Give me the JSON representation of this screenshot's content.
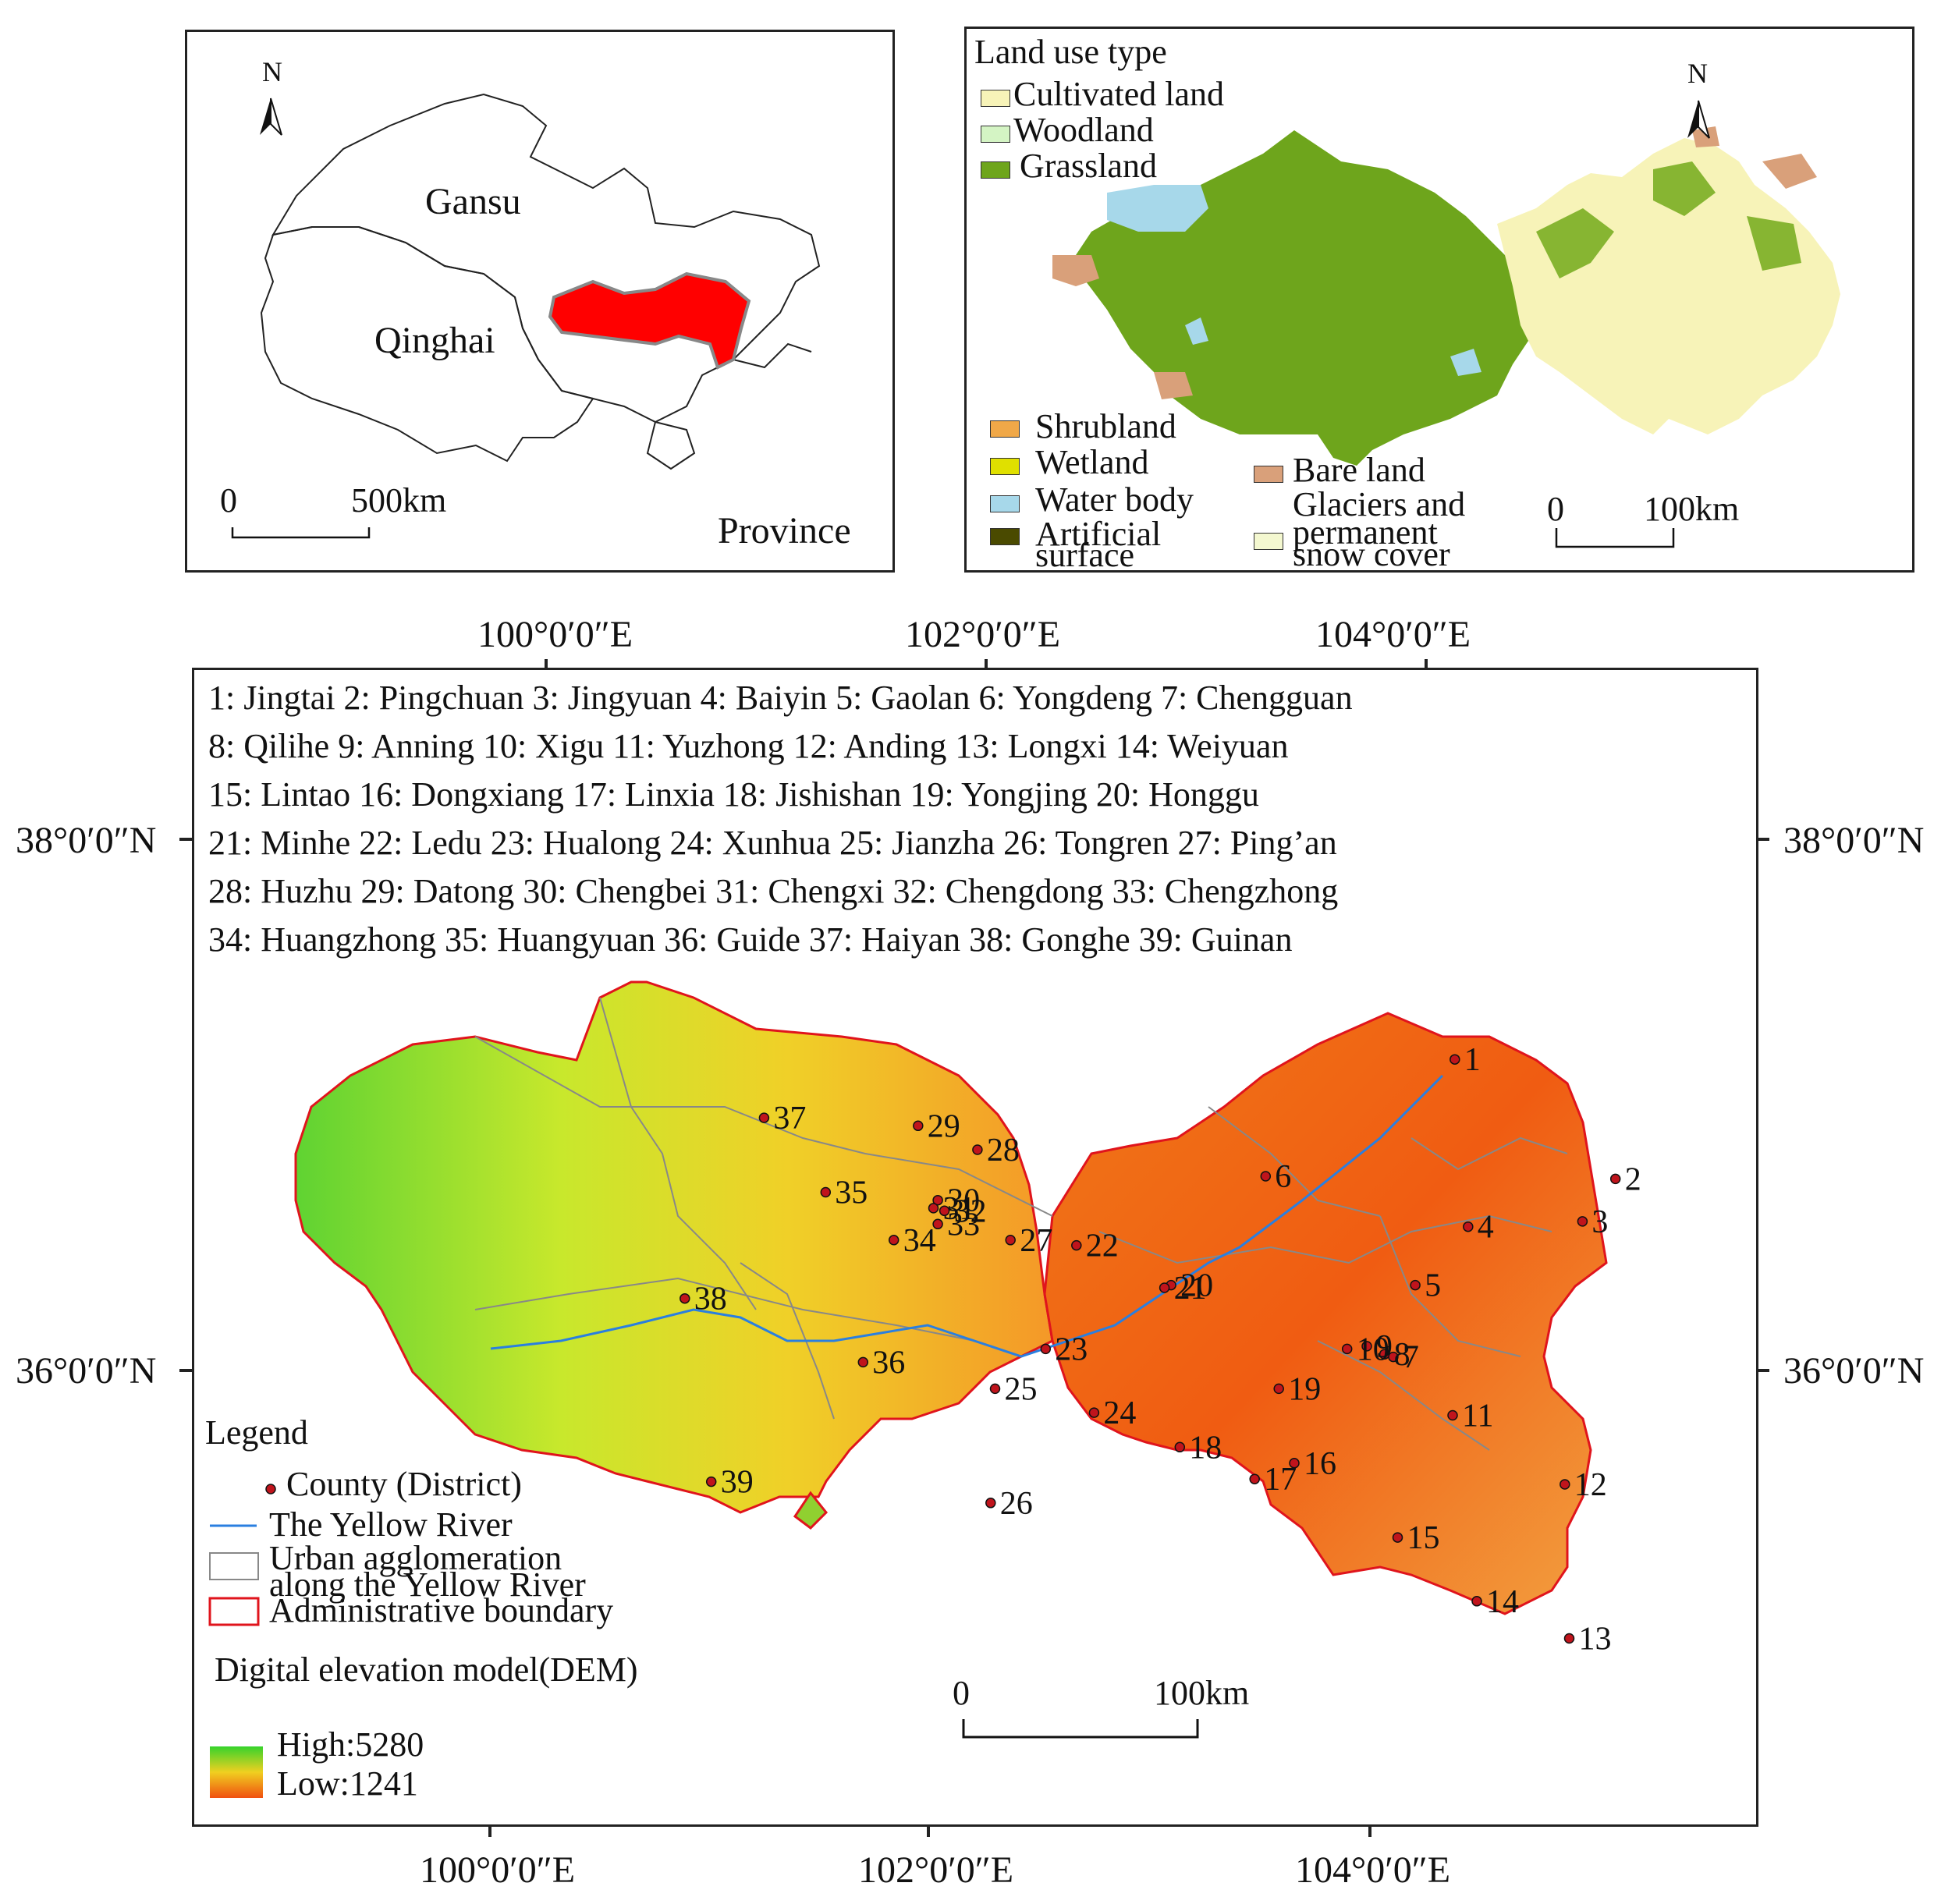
{
  "province_map": {
    "labels": {
      "gansu": "Gansu",
      "qinghai": "Qinghai",
      "province": "Province"
    },
    "scale": {
      "zero": "0",
      "end": "500km"
    },
    "north": "N",
    "colors": {
      "study_area": "#ff0000",
      "outline": "#222222"
    }
  },
  "landuse_map": {
    "title": "Land use type",
    "north": "N",
    "scale": {
      "zero": "0",
      "end": "100km"
    },
    "legend": [
      {
        "label": "Cultivated land",
        "color": "#f7f3b8"
      },
      {
        "label": "Woodland",
        "color": "#d4f4c4"
      },
      {
        "label": "Grassland",
        "color": "#6ea51c"
      },
      {
        "label": "Shrubland",
        "color": "#f0a848"
      },
      {
        "label": "Wetland",
        "color": "#e0e000"
      },
      {
        "label": "Water body",
        "color": "#a7d8ea"
      },
      {
        "label": "Artificial surface",
        "color": "#4a4a00"
      },
      {
        "label": "Bare land",
        "color": "#d9a07a"
      },
      {
        "label": "Glaciers and permanent snow cover",
        "color": "#f4f8d0"
      }
    ],
    "legend_lines": {
      "artificial_1": "Artificial",
      "artificial_2": "surface",
      "glaciers_1": "Glaciers and",
      "glaciers_2": "permanent",
      "glaciers_3": "snow cover"
    }
  },
  "main_map": {
    "axis": {
      "top": [
        "100°0′0″E",
        "102°0′0″E",
        "104°0′0″E"
      ],
      "bottom": [
        "100°0′0″E",
        "102°0′0″E",
        "104°0′0″E"
      ],
      "left": [
        "38°0′0″N",
        "36°0′0″N"
      ],
      "right": [
        "38°0′0″N",
        "36°0′0″N"
      ]
    },
    "county_list_lines": [
      "1: Jingtai  2: Pingchuan  3: Jingyuan  4: Baiyin  5: Gaolan  6: Yongdeng  7: Chengguan",
      "8: Qilihe  9: Anning  10: Xigu  11: Yuzhong  12: Anding  13: Longxi  14: Weiyuan",
      "15: Lintao  16:  Dongxiang  17: Linxia  18: Jishishan  19: Yongjing  20: Honggu",
      "21:  Minhe  22: Ledu  23: Hualong  24: Xunhua  25: Jianzha  26: Tongren  27: Ping’an",
      "28: Huzhu  29: Datong  30: Chengbei  31: Chengxi  32: Chengdong  33: Chengzhong",
      "34: Huangzhong  35: Huangyuan  36: Guide  37: Haiyan  38: Gonghe  39: Guinan"
    ],
    "counties": [
      {
        "id": "1",
        "lon": 104.12,
        "lat": 37.18
      },
      {
        "id": "2",
        "lon": 104.85,
        "lat": 36.73
      },
      {
        "id": "3",
        "lon": 104.7,
        "lat": 36.57
      },
      {
        "id": "4",
        "lon": 104.18,
        "lat": 36.55
      },
      {
        "id": "5",
        "lon": 103.94,
        "lat": 36.33
      },
      {
        "id": "6",
        "lon": 103.26,
        "lat": 36.74
      },
      {
        "id": "7",
        "lon": 103.84,
        "lat": 36.06
      },
      {
        "id": "8",
        "lon": 103.8,
        "lat": 36.07
      },
      {
        "id": "9",
        "lon": 103.72,
        "lat": 36.1
      },
      {
        "id": "10",
        "lon": 103.63,
        "lat": 36.09
      },
      {
        "id": "11",
        "lon": 104.11,
        "lat": 35.84
      },
      {
        "id": "12",
        "lon": 104.62,
        "lat": 35.58
      },
      {
        "id": "13",
        "lon": 104.64,
        "lat": 35.0
      },
      {
        "id": "14",
        "lon": 104.22,
        "lat": 35.14
      },
      {
        "id": "15",
        "lon": 103.86,
        "lat": 35.38
      },
      {
        "id": "16",
        "lon": 103.39,
        "lat": 35.66
      },
      {
        "id": "17",
        "lon": 103.21,
        "lat": 35.6
      },
      {
        "id": "18",
        "lon": 102.87,
        "lat": 35.72
      },
      {
        "id": "19",
        "lon": 103.32,
        "lat": 35.94
      },
      {
        "id": "20",
        "lon": 102.83,
        "lat": 36.33
      },
      {
        "id": "21",
        "lon": 102.8,
        "lat": 36.32
      },
      {
        "id": "22",
        "lon": 102.4,
        "lat": 36.48
      },
      {
        "id": "23",
        "lon": 102.26,
        "lat": 36.09
      },
      {
        "id": "24",
        "lon": 102.48,
        "lat": 35.85
      },
      {
        "id": "25",
        "lon": 102.03,
        "lat": 35.94
      },
      {
        "id": "26",
        "lon": 102.01,
        "lat": 35.51
      },
      {
        "id": "27",
        "lon": 102.1,
        "lat": 36.5
      },
      {
        "id": "28",
        "lon": 101.95,
        "lat": 36.84
      },
      {
        "id": "29",
        "lon": 101.68,
        "lat": 36.93
      },
      {
        "id": "30",
        "lon": 101.77,
        "lat": 36.65
      },
      {
        "id": "31",
        "lon": 101.75,
        "lat": 36.62
      },
      {
        "id": "32",
        "lon": 101.8,
        "lat": 36.61
      },
      {
        "id": "33",
        "lon": 101.77,
        "lat": 36.56
      },
      {
        "id": "34",
        "lon": 101.57,
        "lat": 36.5
      },
      {
        "id": "35",
        "lon": 101.26,
        "lat": 36.68
      },
      {
        "id": "36",
        "lon": 101.43,
        "lat": 36.04
      },
      {
        "id": "37",
        "lon": 100.98,
        "lat": 36.96
      },
      {
        "id": "38",
        "lon": 100.62,
        "lat": 36.28
      },
      {
        "id": "39",
        "lon": 100.74,
        "lat": 35.59
      }
    ],
    "legend": {
      "title": "Legend",
      "county": "County (District)",
      "river": "The Yellow River",
      "urban_1": "Urban agglomeration",
      "urban_2": "along the Yellow River",
      "admin": "Administrative boundary",
      "dem_title": "Digital elevation model(DEM)",
      "dem_high": "High:5280",
      "dem_low": "Low:1241"
    },
    "scale": {
      "zero": "0",
      "end": "100km"
    },
    "colors": {
      "county_dot": "#c0141c",
      "river": "#2a7fe0",
      "urban_outline": "#888888",
      "admin_outline": "#e0141c",
      "dem_high": "#36d32c",
      "dem_low": "#f05010"
    }
  }
}
